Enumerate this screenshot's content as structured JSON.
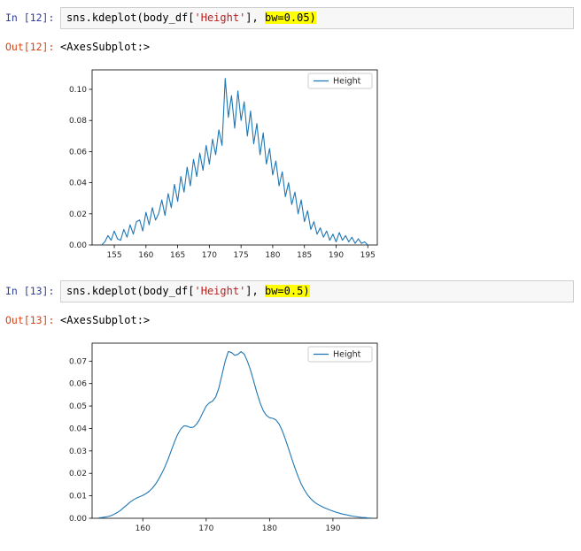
{
  "page": {
    "background": "#ffffff"
  },
  "colors": {
    "in_prompt": "#303F9F",
    "out_prompt": "#D84315",
    "code_string": "#BA2121",
    "code_highlight": "#FFFF00",
    "code_box_bg": "#F7F7F7",
    "code_box_border": "#CFCFCF",
    "plot_line": "#1F77B4"
  },
  "cells": [
    {
      "in_label": "In [12]:",
      "code_segments": [
        {
          "type": "plain",
          "text": "sns.kdeplot(body_df["
        },
        {
          "type": "string",
          "text": "'Height'"
        },
        {
          "type": "plain",
          "text": "], "
        },
        {
          "type": "highlight",
          "text": "bw=0.05)"
        }
      ],
      "out_label": "Out[12]:",
      "out_text": "<AxesSubplot:>"
    },
    {
      "in_label": "In [13]:",
      "code_segments": [
        {
          "type": "plain",
          "text": "sns.kdeplot(body_df["
        },
        {
          "type": "string",
          "text": "'Height'"
        },
        {
          "type": "plain",
          "text": "], "
        },
        {
          "type": "highlight",
          "text": "bw=0.5)"
        }
      ],
      "out_label": "Out[13]:",
      "out_text": "<AxesSubplot:>"
    }
  ],
  "chart_data": [
    {
      "type": "line",
      "title": "",
      "xlabel": "",
      "ylabel": "",
      "legend": [
        "Height"
      ],
      "legend_position": "upper right",
      "series_color": "#1F77B4",
      "grid": false,
      "xlim": [
        151.5,
        196.5
      ],
      "ylim": [
        0,
        0.1125
      ],
      "xticks": [
        155,
        160,
        165,
        170,
        175,
        180,
        185,
        190,
        195
      ],
      "yticks": [
        0.0,
        0.02,
        0.04,
        0.06,
        0.08,
        0.1
      ],
      "ytick_decimals": 2,
      "x": [
        153,
        153.5,
        154,
        154.5,
        155,
        155.5,
        156,
        156.5,
        157,
        157.5,
        158,
        158.5,
        159,
        159.5,
        160,
        160.5,
        161,
        161.5,
        162,
        162.5,
        163,
        163.5,
        164,
        164.5,
        165,
        165.5,
        166,
        166.5,
        167,
        167.5,
        168,
        168.5,
        169,
        169.5,
        170,
        170.5,
        171,
        171.5,
        172,
        172.5,
        173,
        173.5,
        174,
        174.5,
        175,
        175.5,
        176,
        176.5,
        177,
        177.5,
        178,
        178.5,
        179,
        179.5,
        180,
        180.5,
        181,
        181.5,
        182,
        182.5,
        183,
        183.5,
        184,
        184.5,
        185,
        185.5,
        186,
        186.5,
        187,
        187.5,
        188,
        188.5,
        189,
        189.5,
        190,
        190.5,
        191,
        191.5,
        192,
        192.5,
        193,
        193.5,
        194,
        194.5,
        195
      ],
      "y": [
        0.0,
        0.002,
        0.006,
        0.003,
        0.009,
        0.004,
        0.003,
        0.01,
        0.005,
        0.013,
        0.007,
        0.015,
        0.016,
        0.009,
        0.021,
        0.013,
        0.024,
        0.016,
        0.02,
        0.029,
        0.019,
        0.033,
        0.024,
        0.039,
        0.028,
        0.044,
        0.034,
        0.05,
        0.038,
        0.055,
        0.044,
        0.059,
        0.048,
        0.064,
        0.052,
        0.068,
        0.058,
        0.074,
        0.064,
        0.107,
        0.082,
        0.096,
        0.075,
        0.099,
        0.08,
        0.092,
        0.07,
        0.086,
        0.065,
        0.078,
        0.058,
        0.072,
        0.052,
        0.062,
        0.045,
        0.054,
        0.038,
        0.047,
        0.031,
        0.04,
        0.026,
        0.034,
        0.02,
        0.029,
        0.015,
        0.022,
        0.01,
        0.015,
        0.007,
        0.011,
        0.005,
        0.009,
        0.003,
        0.007,
        0.002,
        0.008,
        0.003,
        0.006,
        0.002,
        0.005,
        0.001,
        0.004,
        0.001,
        0.002,
        0.0
      ]
    },
    {
      "type": "line",
      "title": "",
      "xlabel": "",
      "ylabel": "",
      "legend": [
        "Height"
      ],
      "legend_position": "upper right",
      "series_color": "#1F77B4",
      "grid": false,
      "xlim": [
        152,
        197
      ],
      "ylim": [
        0,
        0.078
      ],
      "xticks": [
        160,
        170,
        180,
        190
      ],
      "yticks": [
        0.0,
        0.01,
        0.02,
        0.03,
        0.04,
        0.05,
        0.06,
        0.07
      ],
      "ytick_decimals": 2,
      "x": [
        153,
        153.5,
        154,
        154.5,
        155,
        155.5,
        156,
        156.5,
        157,
        157.5,
        158,
        158.5,
        159,
        159.5,
        160,
        160.5,
        161,
        161.5,
        162,
        162.5,
        163,
        163.5,
        164,
        164.5,
        165,
        165.5,
        166,
        166.5,
        167,
        167.5,
        168,
        168.5,
        169,
        169.5,
        170,
        170.5,
        171,
        171.5,
        172,
        172.5,
        173,
        173.5,
        174,
        174.5,
        175,
        175.5,
        176,
        176.5,
        177,
        177.5,
        178,
        178.5,
        179,
        179.5,
        180,
        180.5,
        181,
        181.5,
        182,
        182.5,
        183,
        183.5,
        184,
        184.5,
        185,
        185.5,
        186,
        186.5,
        187,
        187.5,
        188,
        188.5,
        189,
        189.5,
        190,
        190.5,
        191,
        191.5,
        192,
        192.5,
        193,
        193.5,
        194,
        194.5,
        195,
        195.5,
        196
      ],
      "y": [
        0.0002,
        0.0003,
        0.0005,
        0.0008,
        0.0012,
        0.0018,
        0.0026,
        0.0036,
        0.0048,
        0.006,
        0.0072,
        0.0082,
        0.009,
        0.0096,
        0.0102,
        0.011,
        0.012,
        0.0134,
        0.0152,
        0.0174,
        0.02,
        0.023,
        0.0264,
        0.0302,
        0.034,
        0.0374,
        0.0398,
        0.0412,
        0.041,
        0.0404,
        0.0406,
        0.042,
        0.0442,
        0.0472,
        0.05,
        0.0514,
        0.0522,
        0.054,
        0.058,
        0.064,
        0.07,
        0.0743,
        0.0738,
        0.0726,
        0.073,
        0.0742,
        0.0731,
        0.07,
        0.066,
        0.061,
        0.056,
        0.0515,
        0.048,
        0.0458,
        0.0448,
        0.0445,
        0.0438,
        0.042,
        0.039,
        0.0352,
        0.031,
        0.0266,
        0.0224,
        0.0186,
        0.0153,
        0.0126,
        0.0104,
        0.0087,
        0.0074,
        0.0064,
        0.0056,
        0.0049,
        0.0043,
        0.0037,
        0.0032,
        0.0027,
        0.0023,
        0.0019,
        0.0016,
        0.0013,
        0.001,
        0.0008,
        0.0006,
        0.0004,
        0.0003,
        0.0002,
        0.0001
      ]
    }
  ]
}
